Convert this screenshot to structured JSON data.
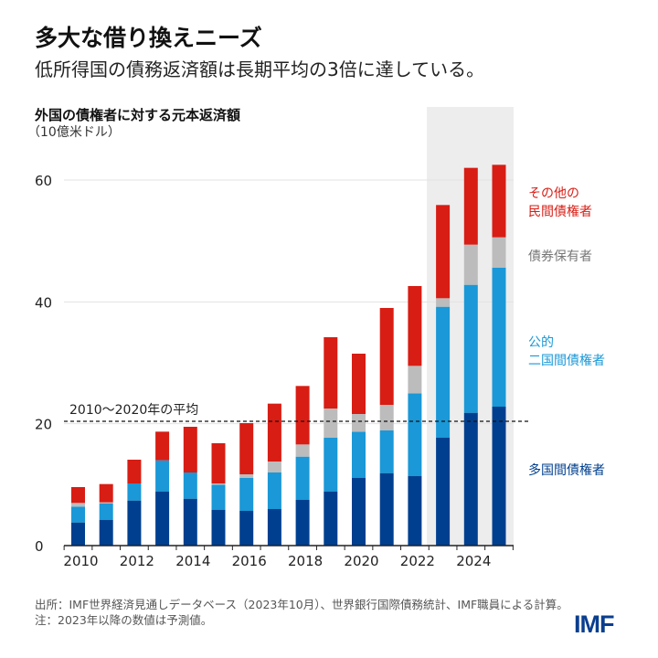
{
  "title": "多大な借り換えニーズ",
  "subtitle": "低所得国の債務返済額は長期平均の3倍に達している。",
  "source": "出所：IMF世界経済見通しデータベース（2023年10月）、世界銀行国際債務統計、IMF職員による計算。",
  "note": "注：2023年以降の数値は予測値。",
  "logo": "IMF",
  "chart_data": {
    "type": "bar",
    "stacked": true,
    "title": "外国の債権者に対する元本返済額",
    "ylabel": "（10億米ドル）",
    "ylim": [
      0,
      65
    ],
    "yticks": [
      "0",
      "20",
      "40",
      "60"
    ],
    "grid": true,
    "legend_placement": "right",
    "forecast_shading_from": 2023,
    "categories": [
      2010,
      2011,
      2012,
      2013,
      2014,
      2015,
      2016,
      2017,
      2018,
      2019,
      2020,
      2021,
      2022,
      2023,
      2024,
      2025
    ],
    "xticks": [
      "2010",
      "2012",
      "2014",
      "2016",
      "2018",
      "2020",
      "2022",
      "2024"
    ],
    "reference_line": {
      "label": "2010～2020年の平均",
      "value": 20.4
    },
    "series": [
      {
        "name": "多国間債権者",
        "color": "#003f8f",
        "values": [
          3.8,
          4.2,
          7.4,
          8.9,
          7.7,
          5.9,
          5.7,
          6.0,
          7.5,
          8.9,
          11.1,
          11.9,
          11.4,
          17.7,
          21.8,
          22.8
        ]
      },
      {
        "name": "公的\n二国間債権者",
        "color": "#1a98d7",
        "values": [
          2.6,
          2.7,
          2.8,
          5.1,
          4.3,
          4.1,
          5.4,
          6.0,
          7.1,
          8.8,
          7.6,
          7.0,
          13.6,
          21.5,
          21.0,
          22.8
        ]
      },
      {
        "name": "債券保有者",
        "color": "#bcbcbc",
        "values": [
          0.6,
          0.2,
          0,
          0,
          0,
          0.2,
          0.6,
          1.8,
          2.0,
          4.8,
          2.9,
          4.2,
          4.5,
          1.4,
          6.6,
          5.0
        ]
      },
      {
        "name": "その他の\n民間債権者",
        "color": "#d81d14",
        "values": [
          2.6,
          3.0,
          3.9,
          4.7,
          7.5,
          6.6,
          8.4,
          9.5,
          9.6,
          11.7,
          9.9,
          15.9,
          13.1,
          15.3,
          12.6,
          11.9
        ]
      }
    ]
  }
}
